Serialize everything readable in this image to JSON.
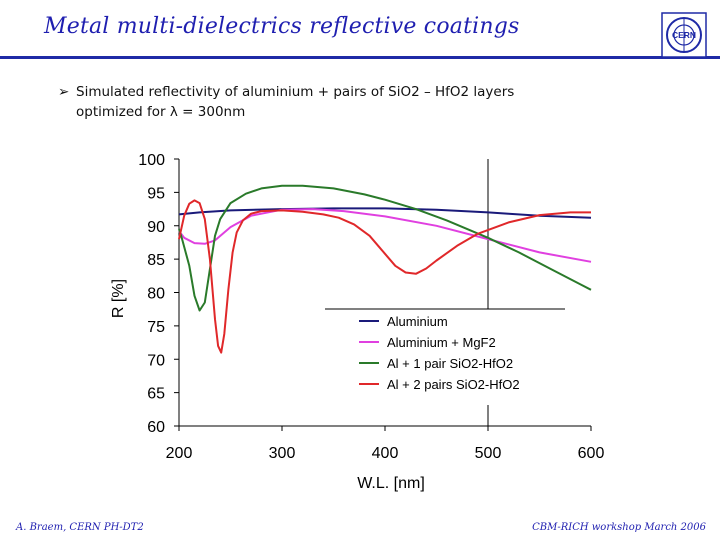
{
  "slide": {
    "title": "Metal multi-dielectrics reflective coatings",
    "bullet_line1": "Simulated reflectivity of aluminium + pairs of SiO2 – HfO2 layers",
    "bullet_line2": "optimized for λ = 300nm",
    "footer_left": "A. Braem, CERN PH-DT2",
    "footer_right": "CBM-RICH workshop March 2006",
    "logo_text": "CERN",
    "title_color": "#1f1fb0"
  },
  "chart_data": {
    "type": "line",
    "xlabel": "W.L. [nm]",
    "ylabel": "R [%]",
    "xlim": [
      200,
      600
    ],
    "ylim": [
      60,
      100
    ],
    "xticks": [
      200,
      300,
      400,
      500,
      600
    ],
    "yticks": [
      60,
      65,
      70,
      75,
      80,
      85,
      90,
      95,
      100
    ],
    "vline_x": 500,
    "grid": false,
    "legend_position": "bottom-right",
    "series": [
      {
        "name": "Aluminium",
        "color": "#1a1a7a",
        "x": [
          200,
          220,
          250,
          300,
          350,
          400,
          450,
          500,
          520,
          550,
          600
        ],
        "y": [
          91.7,
          92.0,
          92.3,
          92.5,
          92.6,
          92.6,
          92.4,
          92.0,
          91.8,
          91.5,
          91.2
        ]
      },
      {
        "name": "Aluminium + MgF2",
        "color": "#e040e0",
        "x": [
          200,
          205,
          215,
          225,
          235,
          250,
          270,
          300,
          330,
          360,
          400,
          450,
          500,
          550,
          600
        ],
        "y": [
          89.2,
          88.2,
          87.4,
          87.3,
          87.8,
          89.8,
          91.5,
          92.4,
          92.5,
          92.2,
          91.4,
          90.0,
          88.0,
          86.0,
          84.6
        ]
      },
      {
        "name": "Al + 1 pair SiO2-HfO2",
        "color": "#2a7a2a",
        "x": [
          200,
          203,
          210,
          215,
          220,
          225,
          230,
          235,
          240,
          250,
          265,
          280,
          300,
          320,
          350,
          380,
          400,
          430,
          460,
          500,
          530,
          560,
          590,
          600
        ],
        "y": [
          89.5,
          88.0,
          84.0,
          79.5,
          77.3,
          78.5,
          83.5,
          88.5,
          91.0,
          93.4,
          94.8,
          95.6,
          96.0,
          96.0,
          95.6,
          94.7,
          93.9,
          92.5,
          90.8,
          88.2,
          86.0,
          83.6,
          81.2,
          80.4
        ]
      },
      {
        "name": "Al + 2 pairs SiO2-HfO2",
        "color": "#e0282a",
        "x": [
          200,
          205,
          210,
          215,
          220,
          225,
          230,
          235,
          238,
          241,
          244,
          248,
          252,
          256,
          262,
          270,
          280,
          300,
          320,
          340,
          355,
          370,
          385,
          400,
          410,
          420,
          430,
          440,
          450,
          470,
          490,
          520,
          550,
          580,
          600
        ],
        "y": [
          88.0,
          91.5,
          93.3,
          93.8,
          93.4,
          91.0,
          85.0,
          76.0,
          72.0,
          71.0,
          73.8,
          80.5,
          86.0,
          89.0,
          90.8,
          91.8,
          92.2,
          92.3,
          92.1,
          91.7,
          91.2,
          90.2,
          88.5,
          85.8,
          84.0,
          83.0,
          82.8,
          83.6,
          84.8,
          87.0,
          88.8,
          90.5,
          91.6,
          92.0,
          92.0
        ]
      }
    ]
  }
}
